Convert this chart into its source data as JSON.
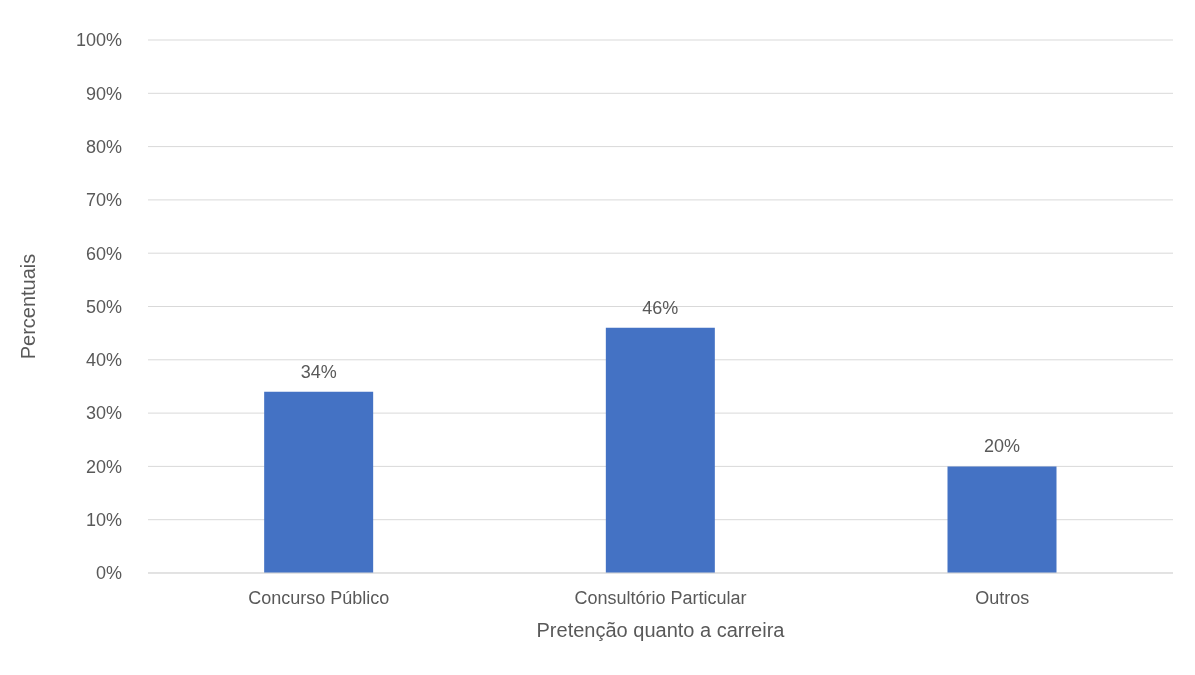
{
  "chart_data": {
    "type": "bar",
    "xlabel": "Pretenção quanto a carreira",
    "ylabel": "Percentuais",
    "categories": [
      "Concurso Público",
      "Consultório Particular",
      "Outros"
    ],
    "values": [
      34,
      46,
      20
    ],
    "value_labels": [
      "34%",
      "46%",
      "20%"
    ],
    "color": "#4472c4",
    "ylim": [
      0,
      100
    ],
    "yticks": [
      {
        "value": 0,
        "label": "0%"
      },
      {
        "value": 10,
        "label": "10%"
      },
      {
        "value": 20,
        "label": "20%"
      },
      {
        "value": 30,
        "label": "30%"
      },
      {
        "value": 40,
        "label": "40%"
      },
      {
        "value": 50,
        "label": "50%"
      },
      {
        "value": 60,
        "label": "60%"
      },
      {
        "value": 70,
        "label": "70%"
      },
      {
        "value": 80,
        "label": "80%"
      },
      {
        "value": 90,
        "label": "90%"
      },
      {
        "value": 100,
        "label": "100%"
      }
    ],
    "grid": "y"
  }
}
